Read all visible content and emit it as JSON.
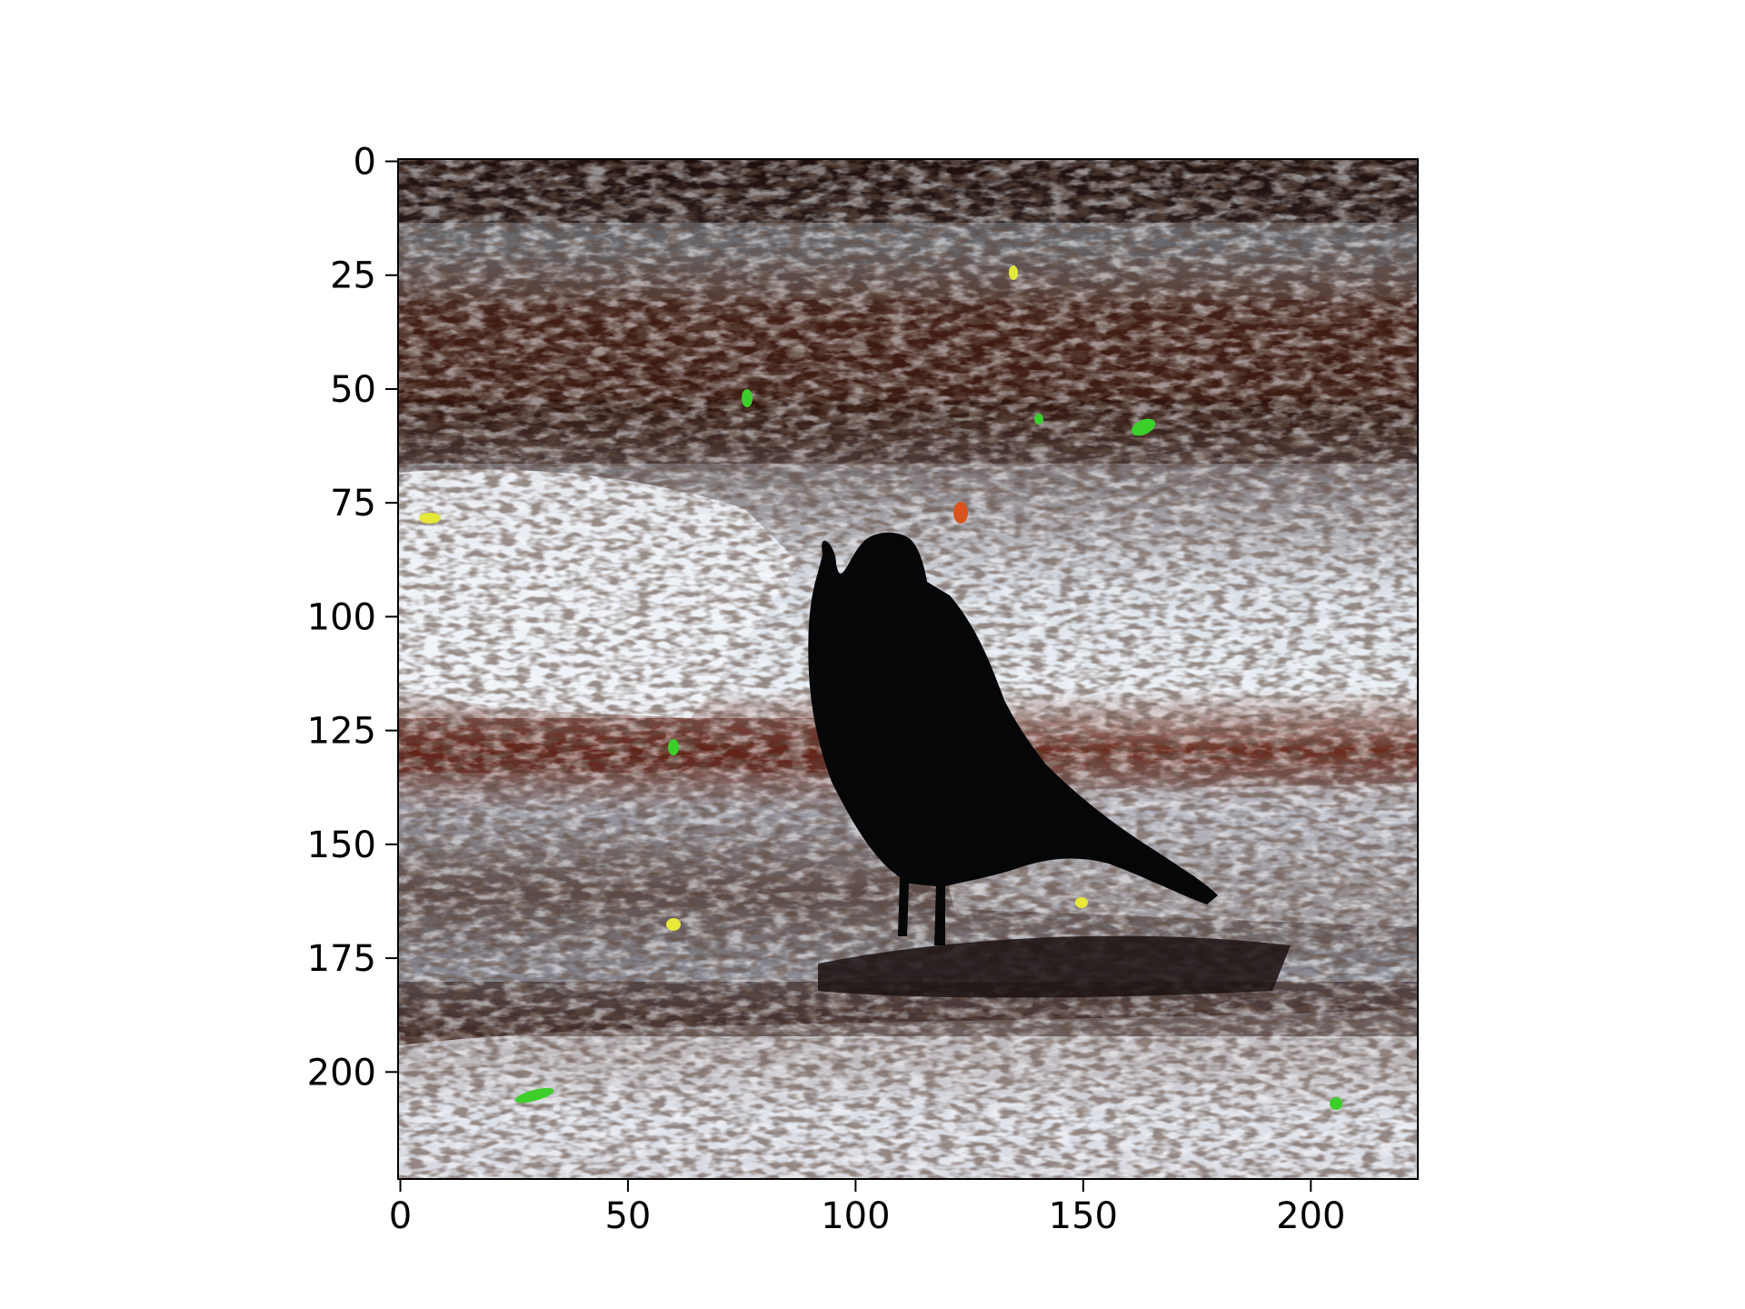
{
  "chart_data": {
    "type": "heatmap",
    "description_kind": "image",
    "title": "",
    "xlabel": "",
    "ylabel": "",
    "x_ticks": [
      0,
      50,
      100,
      150,
      200
    ],
    "y_ticks": [
      0,
      25,
      50,
      75,
      100,
      125,
      150,
      175,
      200
    ],
    "xlim": [
      -0.5,
      223.5
    ],
    "ylim": [
      223.5,
      -0.5
    ],
    "y_inverted": true,
    "grid": false,
    "legend": "none",
    "image_size": [
      224,
      224
    ],
    "palette": {
      "background": "#ffffff",
      "axis": "#000000",
      "dark_soil": "#2a1410",
      "brown_soil": "#5a2a1c",
      "pale_patch": "#e8eef4",
      "bird": "#050608",
      "green_speck": "#3ccf2a",
      "orange_speck": "#d9531e",
      "yellow_speck": "#e6e83a"
    }
  }
}
